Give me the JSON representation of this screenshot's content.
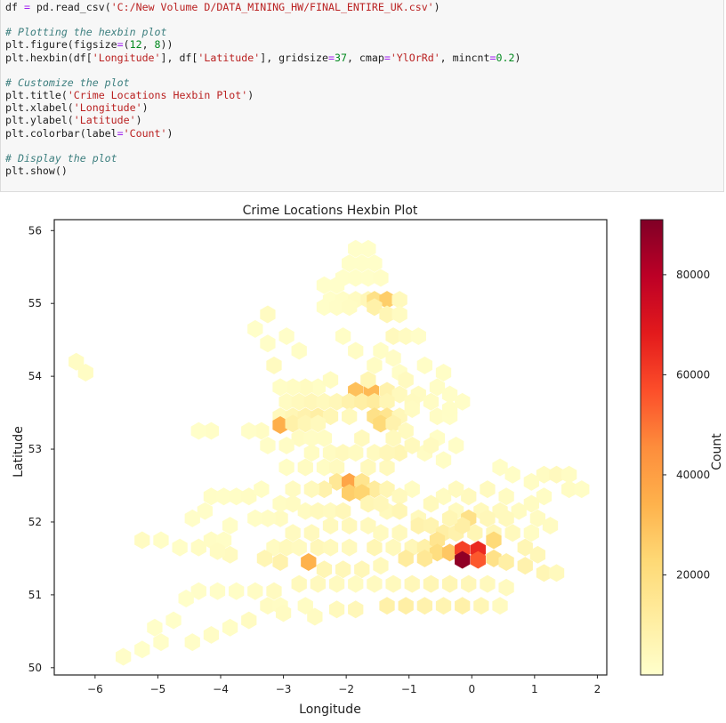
{
  "code_cell": {
    "lines": [
      "df = pd.read_csv('C:/New Volume D/DATA_MINING_HW/FINAL_ENTIRE_UK.csv')",
      "",
      "# Plotting the hexbin plot",
      "plt.figure(figsize=(12, 8))",
      "plt.hexbin(df['Longitude'], df['Latitude'], gridsize=37, cmap='YlOrRd', mincnt=0.2)",
      "",
      "# Customize the plot",
      "plt.title('Crime Locations Hexbin Plot')",
      "plt.xlabel('Longitude')",
      "plt.ylabel('Latitude')",
      "plt.colorbar(label='Count')",
      "",
      "# Display the plot",
      "plt.show()"
    ]
  },
  "chart_data": {
    "type": "heatmap",
    "subtype": "hexbin",
    "title": "Crime Locations Hexbin Plot",
    "xlabel": "Longitude",
    "ylabel": "Latitude",
    "xlim": [
      -6.65,
      2.15
    ],
    "ylim": [
      49.9,
      56.15
    ],
    "xticks": [
      -6,
      -5,
      -4,
      -3,
      -2,
      -1,
      0,
      1,
      2
    ],
    "yticks": [
      50,
      51,
      52,
      53,
      54,
      55,
      56
    ],
    "colormap": "YlOrRd",
    "colorbar": {
      "label": "Count",
      "range": [
        0,
        91000
      ],
      "ticks": [
        20000,
        40000,
        60000,
        80000
      ]
    },
    "hex_width_deg": 0.245,
    "points": [
      [
        -1.85,
        55.75,
        600
      ],
      [
        -1.65,
        55.75,
        600
      ],
      [
        -1.95,
        55.55,
        800
      ],
      [
        -1.75,
        55.55,
        900
      ],
      [
        -1.55,
        55.55,
        700
      ],
      [
        -2.05,
        55.35,
        600
      ],
      [
        -1.85,
        55.35,
        800
      ],
      [
        -1.65,
        55.35,
        900
      ],
      [
        -1.45,
        55.35,
        1200
      ],
      [
        -2.35,
        55.25,
        500
      ],
      [
        -2.15,
        55.25,
        600
      ],
      [
        -2.25,
        55.05,
        700
      ],
      [
        -2.05,
        55.05,
        1500
      ],
      [
        -1.85,
        55.05,
        2500
      ],
      [
        -1.65,
        55.05,
        5000
      ],
      [
        -1.55,
        55.05,
        18000
      ],
      [
        -1.35,
        55.05,
        26000
      ],
      [
        -1.15,
        55.05,
        4000
      ],
      [
        -2.35,
        54.95,
        900
      ],
      [
        -2.15,
        54.95,
        1200
      ],
      [
        -1.95,
        54.95,
        2000
      ],
      [
        -1.55,
        54.95,
        9000
      ],
      [
        -1.35,
        54.85,
        6000
      ],
      [
        -1.15,
        54.85,
        2500
      ],
      [
        -3.25,
        54.85,
        2500
      ],
      [
        -1.25,
        54.55,
        4000
      ],
      [
        -1.05,
        54.55,
        2500
      ],
      [
        -0.85,
        54.55,
        1000
      ],
      [
        -1.45,
        54.35,
        1500
      ],
      [
        -3.15,
        54.15,
        3000
      ],
      [
        -1.15,
        54.05,
        1200
      ],
      [
        -6.3,
        54.2,
        2000
      ],
      [
        -6.15,
        54.05,
        2000
      ],
      [
        -2.45,
        53.85,
        1500
      ],
      [
        -1.85,
        53.8,
        30000
      ],
      [
        -1.6,
        53.8,
        32000
      ],
      [
        -1.35,
        53.8,
        8000
      ],
      [
        -1.15,
        53.75,
        4000
      ],
      [
        -0.85,
        53.75,
        2500
      ],
      [
        -0.55,
        53.85,
        1500
      ],
      [
        -0.35,
        53.75,
        1200
      ],
      [
        -2.95,
        53.65,
        2500
      ],
      [
        -2.75,
        53.65,
        4000
      ],
      [
        -2.55,
        53.65,
        5000
      ],
      [
        -2.35,
        53.65,
        4000
      ],
      [
        -2.15,
        53.65,
        5000
      ],
      [
        -1.95,
        53.65,
        8000
      ],
      [
        -1.75,
        53.65,
        10000
      ],
      [
        -1.55,
        53.65,
        12000
      ],
      [
        -1.35,
        53.65,
        6000
      ],
      [
        -0.95,
        53.65,
        3000
      ],
      [
        -0.65,
        53.65,
        2000
      ],
      [
        -3.05,
        53.45,
        4000
      ],
      [
        -2.85,
        53.45,
        6000
      ],
      [
        -2.65,
        53.45,
        8000
      ],
      [
        -2.45,
        53.45,
        10000
      ],
      [
        -2.25,
        53.45,
        6000
      ],
      [
        -1.95,
        53.45,
        4000
      ],
      [
        -1.55,
        53.45,
        18000
      ],
      [
        -1.35,
        53.45,
        16000
      ],
      [
        -1.15,
        53.45,
        5000
      ],
      [
        -0.55,
        53.45,
        2000
      ],
      [
        -0.35,
        53.45,
        1200
      ],
      [
        -3.05,
        53.33,
        35000
      ],
      [
        -2.85,
        53.35,
        9000
      ],
      [
        -2.65,
        53.35,
        6000
      ],
      [
        -2.45,
        53.35,
        4000
      ],
      [
        -1.45,
        53.35,
        22000
      ],
      [
        -1.25,
        53.35,
        8000
      ],
      [
        -1.05,
        53.25,
        3000
      ],
      [
        -3.35,
        53.25,
        2000
      ],
      [
        -3.55,
        53.25,
        1000
      ],
      [
        -4.15,
        53.25,
        1200
      ],
      [
        -4.35,
        53.25,
        800
      ],
      [
        -2.75,
        53.15,
        2500
      ],
      [
        -2.55,
        53.15,
        1800
      ],
      [
        -2.35,
        53.15,
        2000
      ],
      [
        -1.75,
        53.15,
        3500
      ],
      [
        -1.25,
        53.15,
        4000
      ],
      [
        -0.55,
        53.15,
        1500
      ],
      [
        -0.25,
        53.05,
        1200
      ],
      [
        -2.25,
        52.95,
        2500
      ],
      [
        -2.05,
        52.95,
        4000
      ],
      [
        -1.55,
        52.95,
        3000
      ],
      [
        -1.15,
        52.95,
        6000
      ],
      [
        -0.75,
        52.95,
        2000
      ],
      [
        -0.45,
        52.85,
        1500
      ],
      [
        -1.35,
        52.75,
        3500
      ],
      [
        -2.95,
        52.75,
        1500
      ],
      [
        -2.65,
        52.75,
        2500
      ],
      [
        -2.35,
        52.75,
        2000
      ],
      [
        -2.15,
        52.75,
        3000
      ],
      [
        1.15,
        52.65,
        2500
      ],
      [
        1.35,
        52.65,
        3500
      ],
      [
        1.55,
        52.65,
        2000
      ],
      [
        0.95,
        52.55,
        2000
      ],
      [
        0.65,
        52.65,
        1500
      ],
      [
        0.45,
        52.75,
        1200
      ],
      [
        -2.15,
        52.55,
        14000
      ],
      [
        -1.95,
        52.55,
        38000
      ],
      [
        -1.75,
        52.55,
        16000
      ],
      [
        -1.55,
        52.45,
        12000
      ],
      [
        -1.35,
        52.45,
        6000
      ],
      [
        -2.35,
        52.45,
        8000
      ],
      [
        -2.55,
        52.45,
        4000
      ],
      [
        -0.95,
        52.45,
        2000
      ],
      [
        -1.95,
        52.4,
        26000
      ],
      [
        -1.75,
        52.4,
        24000
      ],
      [
        -1.15,
        52.35,
        3500
      ],
      [
        -0.45,
        52.35,
        2500
      ],
      [
        -4.15,
        52.35,
        1500
      ],
      [
        -3.95,
        52.35,
        1200
      ],
      [
        -3.75,
        52.35,
        1500
      ],
      [
        -3.55,
        52.35,
        2000
      ],
      [
        -3.35,
        52.45,
        1500
      ],
      [
        1.55,
        52.45,
        2000
      ],
      [
        1.75,
        52.45,
        1500
      ],
      [
        1.15,
        52.35,
        2000
      ],
      [
        -2.65,
        52.15,
        2500
      ],
      [
        -2.45,
        52.15,
        4000
      ],
      [
        -2.25,
        52.15,
        3000
      ],
      [
        -2.05,
        52.15,
        5000
      ],
      [
        -1.35,
        52.15,
        4000
      ],
      [
        -1.15,
        52.15,
        6000
      ],
      [
        -0.85,
        52.05,
        4000
      ],
      [
        -0.25,
        52.15,
        3000
      ],
      [
        0.15,
        52.15,
        4000
      ],
      [
        0.45,
        52.15,
        3500
      ],
      [
        0.75,
        52.15,
        2500
      ],
      [
        1.05,
        52.05,
        2500
      ],
      [
        -0.85,
        51.95,
        8000
      ],
      [
        -0.65,
        51.95,
        7000
      ],
      [
        -0.45,
        51.85,
        10000
      ],
      [
        -0.25,
        51.85,
        8000
      ],
      [
        0.05,
        51.85,
        6000
      ],
      [
        0.35,
        51.85,
        5000
      ],
      [
        0.65,
        51.85,
        4000
      ],
      [
        0.95,
        51.85,
        2000
      ],
      [
        1.25,
        51.95,
        2500
      ],
      [
        -1.45,
        51.85,
        3000
      ],
      [
        -1.15,
        51.85,
        3500
      ],
      [
        -5.25,
        51.75,
        2500
      ],
      [
        -4.95,
        51.75,
        1500
      ],
      [
        -4.15,
        51.75,
        2000
      ],
      [
        -3.95,
        51.75,
        1500
      ],
      [
        -3.15,
        51.65,
        2500
      ],
      [
        -2.95,
        51.65,
        4000
      ],
      [
        -2.75,
        51.65,
        3000
      ],
      [
        -2.45,
        51.65,
        5000
      ],
      [
        -2.25,
        51.65,
        4000
      ],
      [
        -1.95,
        51.65,
        3500
      ],
      [
        -1.55,
        51.65,
        6000
      ],
      [
        -1.25,
        51.65,
        4000
      ],
      [
        -0.95,
        51.65,
        5000
      ],
      [
        -0.75,
        51.65,
        9000
      ],
      [
        -0.55,
        51.75,
        16000
      ],
      [
        0.35,
        51.75,
        22000
      ],
      [
        0.85,
        51.65,
        6000
      ],
      [
        1.05,
        51.55,
        5000
      ],
      [
        -0.55,
        51.58,
        20000
      ],
      [
        -0.35,
        51.58,
        28000
      ],
      [
        -0.15,
        51.62,
        60000
      ],
      [
        0.1,
        51.62,
        65000
      ],
      [
        0.1,
        51.48,
        55000
      ],
      [
        -0.15,
        51.48,
        88000
      ],
      [
        -0.75,
        51.5,
        14000
      ],
      [
        -1.05,
        51.5,
        12000
      ],
      [
        0.35,
        51.5,
        18000
      ],
      [
        0.55,
        51.45,
        10000
      ],
      [
        0.85,
        51.4,
        8000
      ],
      [
        1.15,
        51.3,
        6000
      ],
      [
        1.35,
        51.3,
        4000
      ],
      [
        -2.6,
        51.45,
        34000
      ],
      [
        -3.05,
        51.45,
        8000
      ],
      [
        -3.3,
        51.5,
        6000
      ],
      [
        -2.35,
        51.35,
        6000
      ],
      [
        -2.05,
        51.35,
        5000
      ],
      [
        -1.75,
        51.35,
        5000
      ],
      [
        -1.45,
        51.4,
        4000
      ],
      [
        -3.85,
        51.55,
        3000
      ],
      [
        -4.05,
        51.6,
        2500
      ],
      [
        -4.35,
        51.65,
        2000
      ],
      [
        -4.65,
        51.65,
        1200
      ],
      [
        -2.75,
        51.15,
        4000
      ],
      [
        -2.45,
        51.15,
        3500
      ],
      [
        -2.15,
        51.15,
        3000
      ],
      [
        -1.85,
        51.15,
        2500
      ],
      [
        -1.55,
        51.15,
        3000
      ],
      [
        -1.25,
        51.15,
        4000
      ],
      [
        -0.95,
        51.15,
        5000
      ],
      [
        -0.65,
        51.15,
        6000
      ],
      [
        -0.35,
        51.15,
        6000
      ],
      [
        -0.05,
        51.15,
        5000
      ],
      [
        0.25,
        51.15,
        4000
      ],
      [
        0.55,
        51.1,
        3000
      ],
      [
        -3.15,
        51.05,
        3000
      ],
      [
        -3.45,
        51.05,
        2000
      ],
      [
        -3.75,
        51.05,
        1500
      ],
      [
        -4.05,
        51.05,
        1200
      ],
      [
        -4.35,
        51.05,
        1000
      ],
      [
        -4.55,
        50.95,
        800
      ],
      [
        -3.25,
        50.85,
        2500
      ],
      [
        -3.05,
        50.85,
        2000
      ],
      [
        -2.65,
        50.85,
        2000
      ],
      [
        -2.15,
        50.8,
        4000
      ],
      [
        -1.85,
        50.8,
        5000
      ],
      [
        -1.35,
        50.85,
        9000
      ],
      [
        -1.05,
        50.85,
        10000
      ],
      [
        -0.75,
        50.85,
        8000
      ],
      [
        -0.45,
        50.85,
        7000
      ],
      [
        -0.15,
        50.85,
        9000
      ],
      [
        0.15,
        50.85,
        6000
      ],
      [
        0.45,
        50.85,
        3000
      ],
      [
        -3.55,
        50.65,
        2500
      ],
      [
        -3.85,
        50.55,
        1500
      ],
      [
        -4.15,
        50.45,
        1800
      ],
      [
        -4.45,
        50.35,
        1200
      ],
      [
        -4.95,
        50.35,
        1000
      ],
      [
        -5.05,
        50.55,
        800
      ],
      [
        -5.25,
        50.25,
        800
      ],
      [
        -5.55,
        50.15,
        1000
      ],
      [
        -4.75,
        50.65,
        900
      ],
      [
        -3.0,
        50.75,
        2500
      ],
      [
        -2.5,
        50.7,
        2500
      ],
      [
        -3.05,
        52.05,
        2500
      ],
      [
        -3.25,
        52.05,
        1800
      ],
      [
        -3.45,
        52.05,
        1500
      ],
      [
        -3.85,
        51.95,
        1200
      ],
      [
        -4.25,
        52.15,
        1000
      ],
      [
        -4.45,
        52.05,
        1000
      ],
      [
        -2.85,
        51.85,
        3000
      ],
      [
        -2.55,
        51.85,
        3500
      ],
      [
        -2.25,
        51.95,
        4000
      ],
      [
        -1.95,
        51.95,
        4500
      ],
      [
        -1.65,
        51.95,
        3500
      ],
      [
        -0.05,
        52.35,
        3500
      ],
      [
        0.25,
        52.45,
        3000
      ],
      [
        0.55,
        52.35,
        2500
      ],
      [
        -0.05,
        52.05,
        18000
      ],
      [
        0.25,
        52.05,
        5000
      ],
      [
        -0.15,
        51.95,
        10000
      ],
      [
        -0.35,
        52.05,
        6000
      ],
      [
        0.55,
        52.05,
        4000
      ],
      [
        -1.65,
        52.75,
        4000
      ],
      [
        -1.35,
        52.95,
        5000
      ],
      [
        -0.95,
        53.05,
        4000
      ],
      [
        -0.65,
        53.05,
        3000
      ],
      [
        -3.25,
        53.05,
        1200
      ],
      [
        -2.95,
        53.05,
        1800
      ],
      [
        -2.55,
        52.95,
        2200
      ],
      [
        -1.85,
        52.95,
        2800
      ],
      [
        -2.85,
        52.45,
        2500
      ],
      [
        -3.05,
        52.25,
        2000
      ],
      [
        -2.85,
        52.25,
        2500
      ],
      [
        -1.65,
        52.25,
        6000
      ],
      [
        -1.45,
        52.25,
        5000
      ],
      [
        -0.65,
        52.25,
        4000
      ],
      [
        -0.25,
        52.45,
        3000
      ],
      [
        0.95,
        52.25,
        2500
      ],
      [
        -2.05,
        54.55,
        1500
      ],
      [
        -1.85,
        54.35,
        1800
      ],
      [
        -1.55,
        54.15,
        2000
      ],
      [
        -1.25,
        54.25,
        1600
      ],
      [
        -2.75,
        54.35,
        1200
      ],
      [
        -2.95,
        54.55,
        1000
      ],
      [
        -3.45,
        54.65,
        900
      ],
      [
        -3.25,
        54.45,
        1100
      ],
      [
        -2.25,
        53.95,
        2200
      ],
      [
        -1.65,
        53.95,
        6000
      ],
      [
        -1.05,
        53.95,
        3000
      ],
      [
        -0.75,
        54.15,
        1500
      ],
      [
        -0.45,
        54.05,
        1500
      ],
      [
        -2.65,
        53.85,
        2800
      ],
      [
        -2.85,
        53.85,
        2000
      ],
      [
        -3.05,
        53.85,
        1500
      ],
      [
        -0.95,
        53.55,
        2500
      ],
      [
        -0.35,
        53.55,
        1500
      ],
      [
        -0.15,
        53.65,
        1200
      ]
    ]
  }
}
